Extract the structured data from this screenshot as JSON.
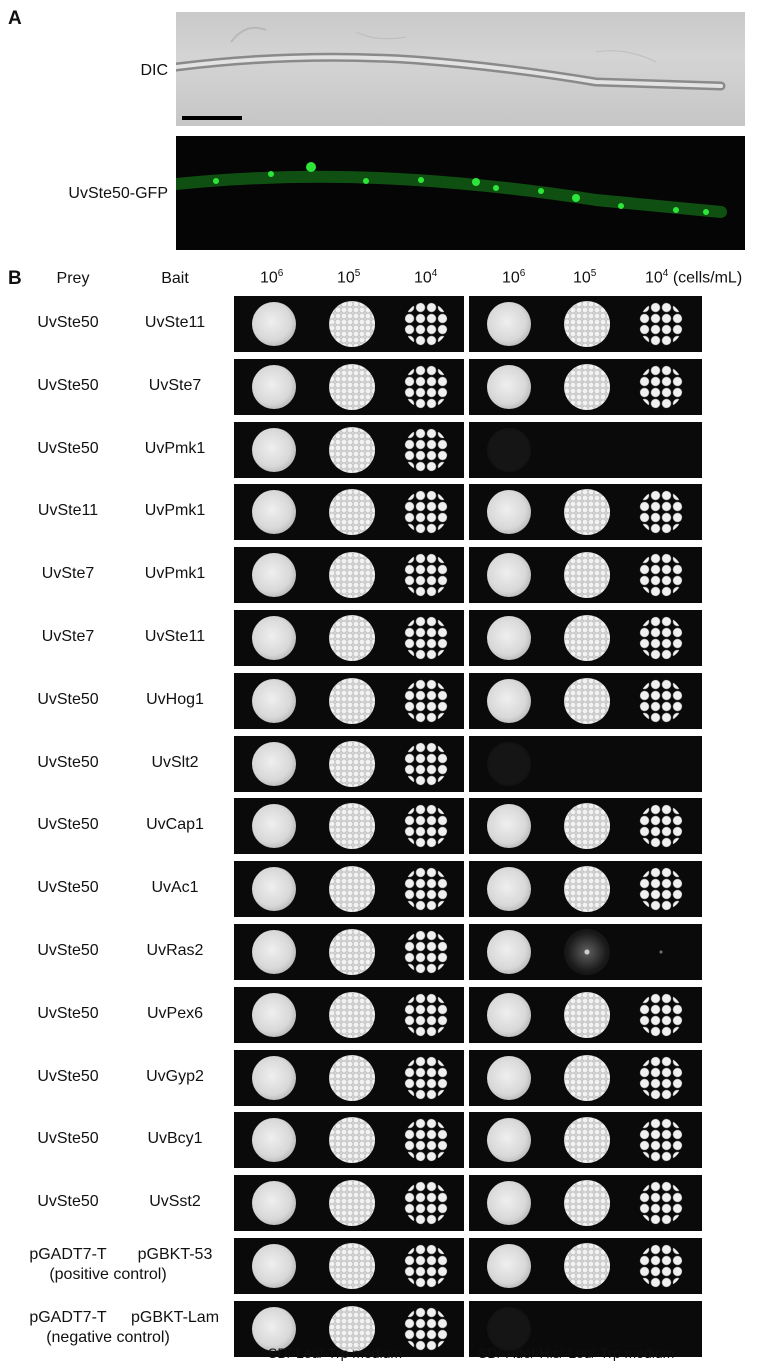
{
  "panel_a": {
    "letter": "A",
    "dic_label": "DIC",
    "gfp_label": "UvSte50-GFP"
  },
  "panel_b": {
    "letter": "B",
    "header_prey": "Prey",
    "header_bait": "Bait",
    "left_conc": [
      "10",
      "10",
      "10"
    ],
    "left_exp": [
      "6",
      "5",
      "4"
    ],
    "right_conc": [
      "10",
      "10",
      "10"
    ],
    "right_exp": [
      "6",
      "5",
      "4"
    ],
    "units": "(cells/mL)",
    "footer_left": "SD/-Leu/-Trp medium",
    "footer_right": "SD/-Ade/-His/-Leu/-Trp medium",
    "rows": [
      {
        "prey": "UvSte50",
        "bait": "UvSte11",
        "right_growth": "grow"
      },
      {
        "prey": "UvSte50",
        "bait": "UvSte7",
        "right_growth": "grow"
      },
      {
        "prey": "UvSte50",
        "bait": "UvPmk1",
        "right_growth": "none"
      },
      {
        "prey": "UvSte11",
        "bait": "UvPmk1",
        "right_growth": "grow"
      },
      {
        "prey": "UvSte7",
        "bait": "UvPmk1",
        "right_growth": "grow"
      },
      {
        "prey": "UvSte7",
        "bait": "UvSte11",
        "right_growth": "grow"
      },
      {
        "prey": "UvSte50",
        "bait": "UvHog1",
        "right_growth": "grow"
      },
      {
        "prey": "UvSte50",
        "bait": "UvSlt2",
        "right_growth": "none"
      },
      {
        "prey": "UvSte50",
        "bait": "UvCap1",
        "right_growth": "grow"
      },
      {
        "prey": "UvSte50",
        "bait": "UvAc1",
        "right_growth": "grow"
      },
      {
        "prey": "UvSte50",
        "bait": "UvRas2",
        "right_growth": "weak"
      },
      {
        "prey": "UvSte50",
        "bait": "UvPex6",
        "right_growth": "grow"
      },
      {
        "prey": "UvSte50",
        "bait": "UvGyp2",
        "right_growth": "grow"
      },
      {
        "prey": "UvSte50",
        "bait": "UvBcy1",
        "right_growth": "grow"
      },
      {
        "prey": "UvSte50",
        "bait": "UvSst2",
        "right_growth": "grow"
      },
      {
        "prey": "pGADT7-T",
        "bait": "pGBKT-53",
        "note": "(positive control)",
        "right_growth": "grow"
      },
      {
        "prey": "pGADT7-T",
        "bait": "pGBKT-Lam",
        "note": "(negative control)",
        "right_growth": "none"
      }
    ]
  }
}
